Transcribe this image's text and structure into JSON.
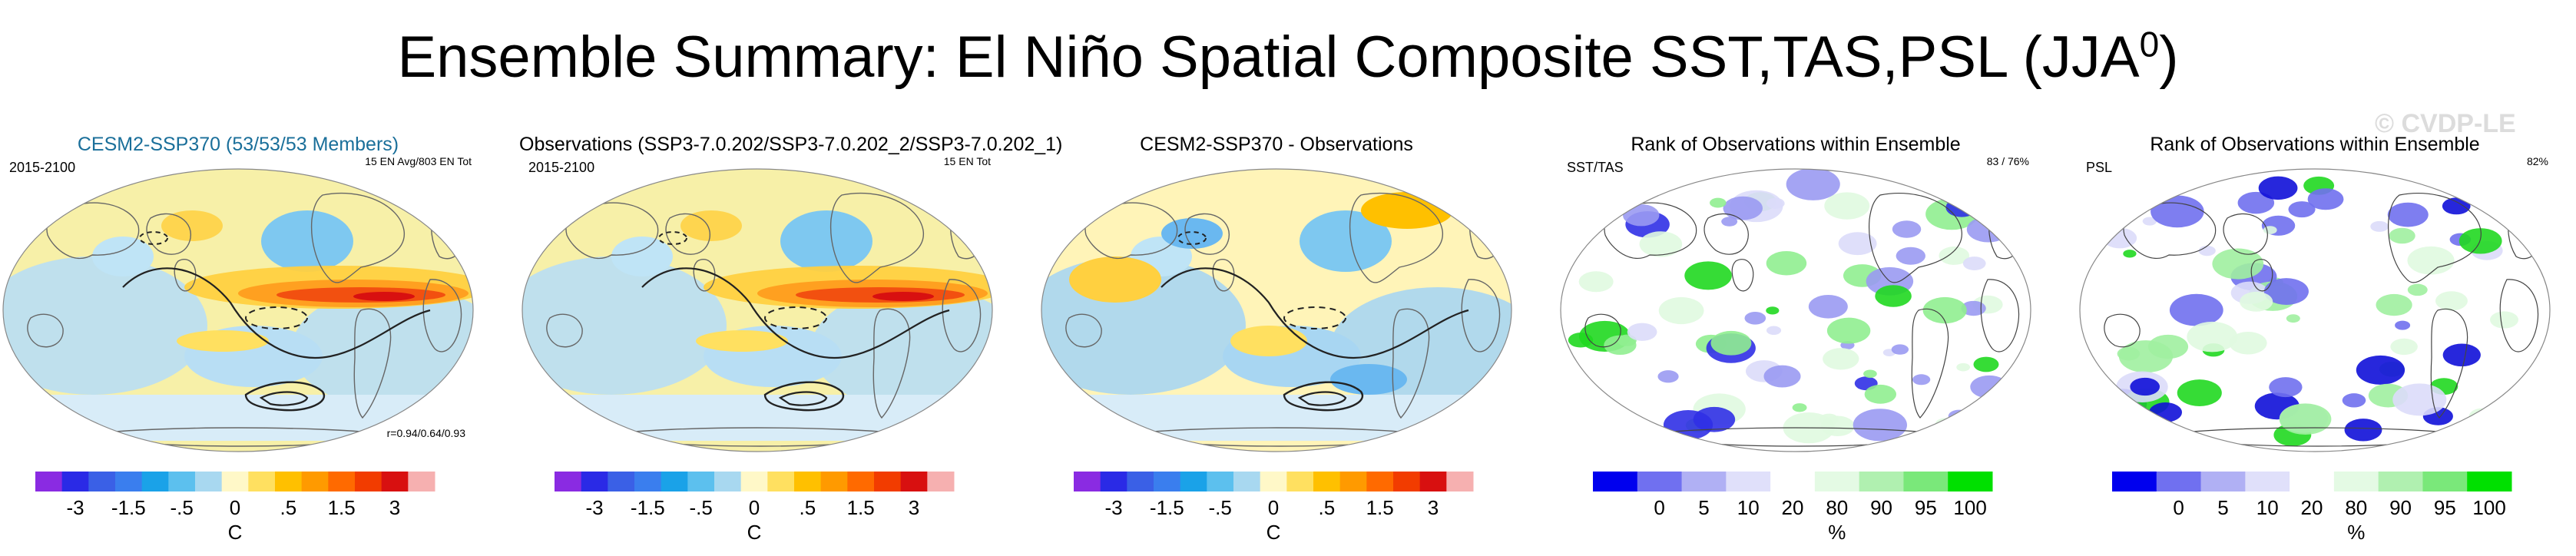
{
  "header": {
    "title": "Ensemble Summary: El Niño Spatial Composite SST,TAS,PSL (JJA",
    "title_sup": "0",
    "title_close": ")",
    "watermark": "© CVDP-LE"
  },
  "panels": [
    {
      "title": "CESM2-SSP370 (53/53/53 Members)",
      "left_label": "2015-2100",
      "right_label": "15 EN Avg/803 EN Tot",
      "corner_label": "r=0.94/0.64/0.93",
      "kind": "diverging"
    },
    {
      "title": "Observations (SSP3-7.0.202/SSP3-7.0.202_2/SSP3-7.0.202_1)",
      "left_label": "2015-2100",
      "right_label": "15 EN Tot",
      "corner_label": "",
      "kind": "diverging"
    },
    {
      "title": "CESM2-SSP370 - Observations",
      "left_label": "",
      "right_label": "",
      "corner_label": "",
      "kind": "diverging"
    },
    {
      "title": "Rank of Observations within Ensemble",
      "left_label": "SST/TAS",
      "right_label": "83 /  76%",
      "corner_label": "",
      "kind": "rank"
    },
    {
      "title": "Rank of Observations within Ensemble",
      "left_label": "PSL",
      "right_label": "82%",
      "corner_label": "",
      "kind": "rank"
    }
  ],
  "chart_data": [
    {
      "type": "heatmap",
      "legend": "diverging colorbar",
      "colorbar": {
        "unit": "C",
        "tick_labels": [
          "-3",
          "-1.5",
          "-.5",
          "0",
          ".5",
          "1.5",
          "3"
        ],
        "colors": [
          "#8a2be2",
          "#2a2ae6",
          "#3a60e6",
          "#3a7eee",
          "#1aa2e8",
          "#5cc0ee",
          "#a8d8f0",
          "#fff8c8",
          "#ffe060",
          "#ffc000",
          "#ff9a00",
          "#ff6a00",
          "#f23c00",
          "#d81010",
          "#f6b0b0"
        ],
        "tick_edges": [
          1,
          3,
          5,
          7,
          9,
          11,
          13
        ]
      }
    },
    {
      "type": "heatmap",
      "legend": "rank colorbar",
      "colorbar": {
        "unit": "%",
        "tick_labels": [
          "0",
          "5",
          "10",
          "20",
          "80",
          "90",
          "95",
          "100"
        ],
        "colors": [
          "#0000ee",
          "#7070f0",
          "#b0b0f4",
          "#e0e0fa",
          "#ffffff",
          "#e4fae4",
          "#b0f0b0",
          "#7ae87a",
          "#00e000"
        ],
        "tick_edges": [
          1,
          2,
          3,
          4,
          5,
          6,
          7,
          8
        ]
      }
    }
  ]
}
